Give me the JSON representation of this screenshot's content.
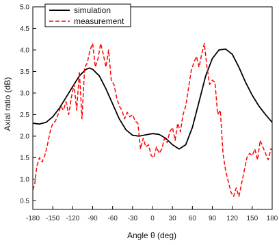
{
  "chart_data": {
    "type": "line",
    "title": "",
    "xlabel": "Angle θ (deg)",
    "ylabel": "Axial ratio (dB)",
    "xlim": [
      -180,
      180
    ],
    "ylim": [
      0.3,
      5.0
    ],
    "x_ticks": [
      -180,
      -150,
      -120,
      -90,
      -60,
      -30,
      0,
      30,
      60,
      90,
      120,
      150,
      180
    ],
    "y_ticks": [
      0.5,
      1.0,
      1.5,
      2.0,
      2.5,
      3.0,
      3.5,
      4.0,
      4.5,
      5.0
    ],
    "x_tick_labels": [
      "-180",
      "-150",
      "-120",
      "-90",
      "-60",
      "-30",
      "0",
      "30",
      "60",
      "90",
      "120",
      "150",
      "180"
    ],
    "y_tick_labels": [
      "0.5",
      "1.0",
      "1.5",
      "2.0",
      "2.5",
      "3.0",
      "3.5",
      "4.0",
      "4.5",
      "5.0"
    ],
    "grid": false,
    "legend_position": "top-left",
    "series": [
      {
        "name": "simulation",
        "style": "solid",
        "color": "#000000",
        "points": [
          [
            -180,
            2.3
          ],
          [
            -170,
            2.28
          ],
          [
            -160,
            2.32
          ],
          [
            -150,
            2.45
          ],
          [
            -140,
            2.65
          ],
          [
            -130,
            2.9
          ],
          [
            -120,
            3.15
          ],
          [
            -110,
            3.4
          ],
          [
            -100,
            3.55
          ],
          [
            -95,
            3.58
          ],
          [
            -90,
            3.55
          ],
          [
            -80,
            3.4
          ],
          [
            -70,
            3.1
          ],
          [
            -60,
            2.75
          ],
          [
            -50,
            2.4
          ],
          [
            -40,
            2.15
          ],
          [
            -30,
            2.02
          ],
          [
            -20,
            2.0
          ],
          [
            -10,
            2.03
          ],
          [
            0,
            2.06
          ],
          [
            10,
            2.04
          ],
          [
            20,
            1.95
          ],
          [
            30,
            1.8
          ],
          [
            40,
            1.7
          ],
          [
            50,
            1.8
          ],
          [
            60,
            2.2
          ],
          [
            70,
            2.8
          ],
          [
            80,
            3.4
          ],
          [
            90,
            3.8
          ],
          [
            100,
            4.0
          ],
          [
            110,
            4.02
          ],
          [
            120,
            3.9
          ],
          [
            130,
            3.6
          ],
          [
            140,
            3.25
          ],
          [
            150,
            2.95
          ],
          [
            160,
            2.7
          ],
          [
            170,
            2.5
          ],
          [
            180,
            2.32
          ]
        ]
      },
      {
        "name": "measurement",
        "style": "dashed",
        "color": "#ff0000",
        "points": [
          [
            -180,
            0.75
          ],
          [
            -177,
            0.9
          ],
          [
            -174,
            1.3
          ],
          [
            -170,
            1.5
          ],
          [
            -166,
            1.4
          ],
          [
            -162,
            1.55
          ],
          [
            -158,
            1.8
          ],
          [
            -154,
            2.1
          ],
          [
            -150,
            2.3
          ],
          [
            -146,
            2.35
          ],
          [
            -142,
            2.5
          ],
          [
            -138,
            2.7
          ],
          [
            -134,
            2.6
          ],
          [
            -130,
            2.8
          ],
          [
            -126,
            2.5
          ],
          [
            -122,
            2.9
          ],
          [
            -118,
            3.2
          ],
          [
            -114,
            2.6
          ],
          [
            -110,
            3.5
          ],
          [
            -106,
            2.4
          ],
          [
            -102,
            3.6
          ],
          [
            -98,
            3.7
          ],
          [
            -94,
            4.0
          ],
          [
            -90,
            4.15
          ],
          [
            -86,
            3.6
          ],
          [
            -82,
            3.8
          ],
          [
            -78,
            4.15
          ],
          [
            -74,
            3.9
          ],
          [
            -70,
            3.6
          ],
          [
            -66,
            4.0
          ],
          [
            -62,
            3.3
          ],
          [
            -58,
            3.2
          ],
          [
            -54,
            2.9
          ],
          [
            -50,
            2.7
          ],
          [
            -46,
            2.6
          ],
          [
            -42,
            2.4
          ],
          [
            -38,
            2.55
          ],
          [
            -34,
            2.45
          ],
          [
            -30,
            2.5
          ],
          [
            -26,
            2.35
          ],
          [
            -22,
            2.3
          ],
          [
            -18,
            1.7
          ],
          [
            -14,
            1.95
          ],
          [
            -10,
            1.75
          ],
          [
            -6,
            1.8
          ],
          [
            -2,
            1.55
          ],
          [
            2,
            1.5
          ],
          [
            6,
            1.75
          ],
          [
            10,
            1.6
          ],
          [
            14,
            1.7
          ],
          [
            18,
            1.95
          ],
          [
            22,
            1.85
          ],
          [
            26,
            2.1
          ],
          [
            30,
            2.2
          ],
          [
            34,
            1.9
          ],
          [
            38,
            2.3
          ],
          [
            42,
            2.1
          ],
          [
            46,
            2.5
          ],
          [
            50,
            2.7
          ],
          [
            54,
            3.1
          ],
          [
            58,
            3.5
          ],
          [
            62,
            3.7
          ],
          [
            66,
            3.85
          ],
          [
            70,
            3.6
          ],
          [
            74,
            3.9
          ],
          [
            78,
            4.15
          ],
          [
            82,
            3.6
          ],
          [
            86,
            3.2
          ],
          [
            90,
            3.3
          ],
          [
            94,
            3.25
          ],
          [
            98,
            2.5
          ],
          [
            102,
            2.6
          ],
          [
            106,
            1.6
          ],
          [
            110,
            1.2
          ],
          [
            114,
            0.95
          ],
          [
            118,
            0.7
          ],
          [
            122,
            0.6
          ],
          [
            126,
            0.8
          ],
          [
            130,
            0.6
          ],
          [
            134,
            0.9
          ],
          [
            138,
            1.2
          ],
          [
            142,
            1.5
          ],
          [
            146,
            1.6
          ],
          [
            150,
            1.55
          ],
          [
            154,
            1.7
          ],
          [
            158,
            1.45
          ],
          [
            162,
            1.9
          ],
          [
            166,
            1.75
          ],
          [
            170,
            1.6
          ],
          [
            174,
            1.45
          ],
          [
            178,
            1.7
          ],
          [
            180,
            1.7
          ]
        ]
      }
    ]
  }
}
